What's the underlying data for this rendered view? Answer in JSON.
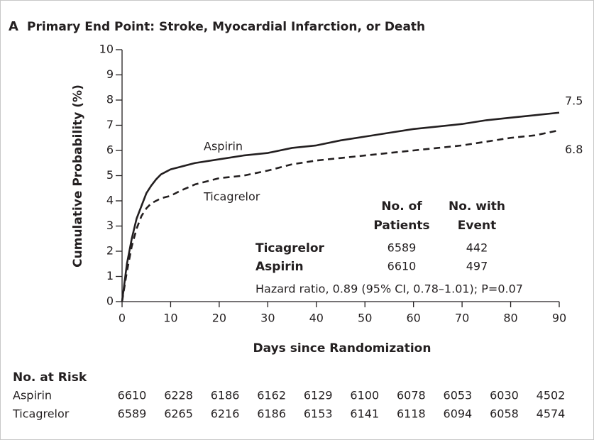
{
  "chart_data": {
    "type": "line",
    "panel": "A",
    "title": "Primary End Point: Stroke, Myocardial Infarction, or Death",
    "x_label": "Days since Randomization",
    "y_label": "Cumulative Probability (%)",
    "x": [
      0,
      1,
      2,
      3,
      4,
      5,
      6,
      7,
      8,
      9,
      10,
      12,
      15,
      20,
      25,
      30,
      35,
      40,
      45,
      50,
      55,
      60,
      65,
      70,
      75,
      80,
      85,
      90
    ],
    "series": [
      {
        "name": "Aspirin",
        "color": "#231f20",
        "line_style": "solid",
        "values": [
          0,
          1.5,
          2.5,
          3.3,
          3.8,
          4.3,
          4.6,
          4.85,
          5.05,
          5.15,
          5.25,
          5.35,
          5.5,
          5.65,
          5.8,
          5.9,
          6.1,
          6.2,
          6.4,
          6.55,
          6.7,
          6.85,
          6.95,
          7.05,
          7.2,
          7.3,
          7.4,
          7.5
        ]
      },
      {
        "name": "Ticagrelor",
        "color": "#231f20",
        "line_style": "dashed",
        "values": [
          0,
          1.2,
          2.2,
          2.9,
          3.4,
          3.7,
          3.9,
          4.0,
          4.1,
          4.15,
          4.2,
          4.4,
          4.65,
          4.9,
          5.0,
          5.2,
          5.45,
          5.6,
          5.7,
          5.8,
          5.9,
          6.0,
          6.1,
          6.2,
          6.35,
          6.5,
          6.6,
          6.8
        ]
      }
    ],
    "xlim": [
      0,
      90
    ],
    "xticks": [
      0,
      10,
      20,
      30,
      40,
      50,
      60,
      70,
      80,
      90
    ],
    "ylim": [
      0,
      10
    ],
    "yticks": [
      0,
      1,
      2,
      3,
      4,
      5,
      6,
      7,
      8,
      9,
      10
    ],
    "grid": false,
    "summary_table": {
      "columns": [
        [
          "No. of",
          "Patients"
        ],
        [
          "No. with",
          "Event"
        ]
      ],
      "rows": [
        {
          "name": "Ticagrelor",
          "cells": [
            6589,
            442
          ]
        },
        {
          "name": "Aspirin",
          "cells": [
            6610,
            497
          ]
        }
      ],
      "note": "Hazard ratio, 0.89 (95% CI, 0.78–1.01); P=0.07"
    },
    "risk_table": {
      "title": "No. at Risk",
      "rows": [
        {
          "name": "Aspirin",
          "values": [
            6610,
            6228,
            6186,
            6162,
            6129,
            6100,
            6078,
            6053,
            6030,
            4502
          ]
        },
        {
          "name": "Ticagrelor",
          "values": [
            6589,
            6265,
            6216,
            6186,
            6153,
            6141,
            6118,
            6094,
            6058,
            4574
          ]
        }
      ]
    }
  }
}
